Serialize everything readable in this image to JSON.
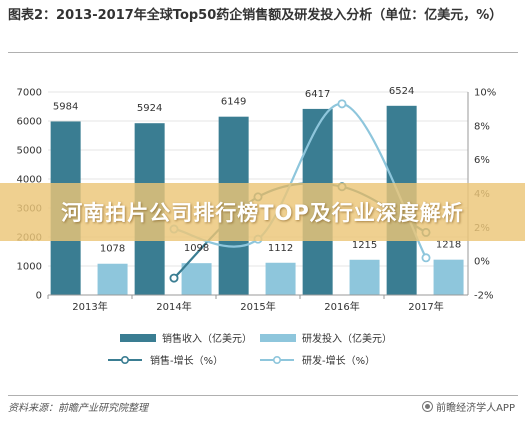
{
  "title": "图表2：2013-2017年全球Top50药企销售额及研发投入分析（单位：亿美元，%）",
  "banner": "河南拍片公司排行榜TOP及行业深度解析",
  "source": "资料来源：前瞻产业研究院整理",
  "brand": "前瞻经济学人APP",
  "colors": {
    "sales_bar": "#3a7d92",
    "rd_bar": "#8ec6dc",
    "sales_growth_line": "#3a7d92",
    "rd_growth_line": "#8ec6dc"
  },
  "chart_data": {
    "type": "bar",
    "title": "2013-2017年全球Top50药企销售额及研发投入分析",
    "categories": [
      "2013年",
      "2014年",
      "2015年",
      "2016年",
      "2017年"
    ],
    "y_left": {
      "ticks": [
        "0",
        "1000",
        "2000",
        "3000",
        "4000",
        "5000",
        "6000",
        "7000"
      ],
      "ylim": [
        0,
        7000
      ]
    },
    "y_right": {
      "ticks": [
        "-2%",
        "0%",
        "2%",
        "4%",
        "6%",
        "8%",
        "10%"
      ],
      "ylim": [
        -2,
        10
      ]
    },
    "series": [
      {
        "name": "销售收入（亿美元）",
        "type": "bar",
        "axis": "left",
        "values": [
          5984,
          5924,
          6149,
          6417,
          6524
        ],
        "labels": [
          "5984",
          "5924",
          "6149",
          "6417",
          "6524"
        ]
      },
      {
        "name": "研发投入（亿美元）",
        "type": "bar",
        "axis": "left",
        "values": [
          1078,
          1098,
          1112,
          1215,
          1218
        ],
        "labels": [
          "1078",
          "1098",
          "1112",
          "1215",
          "1218"
        ]
      },
      {
        "name": "销售-增长（%）",
        "type": "line",
        "axis": "right",
        "values": [
          null,
          -1.0,
          3.8,
          4.4,
          1.7
        ]
      },
      {
        "name": "研发-增长（%）",
        "type": "line",
        "axis": "right",
        "values": [
          null,
          1.9,
          1.3,
          9.3,
          0.2
        ]
      }
    ],
    "legend_position": "bottom"
  }
}
